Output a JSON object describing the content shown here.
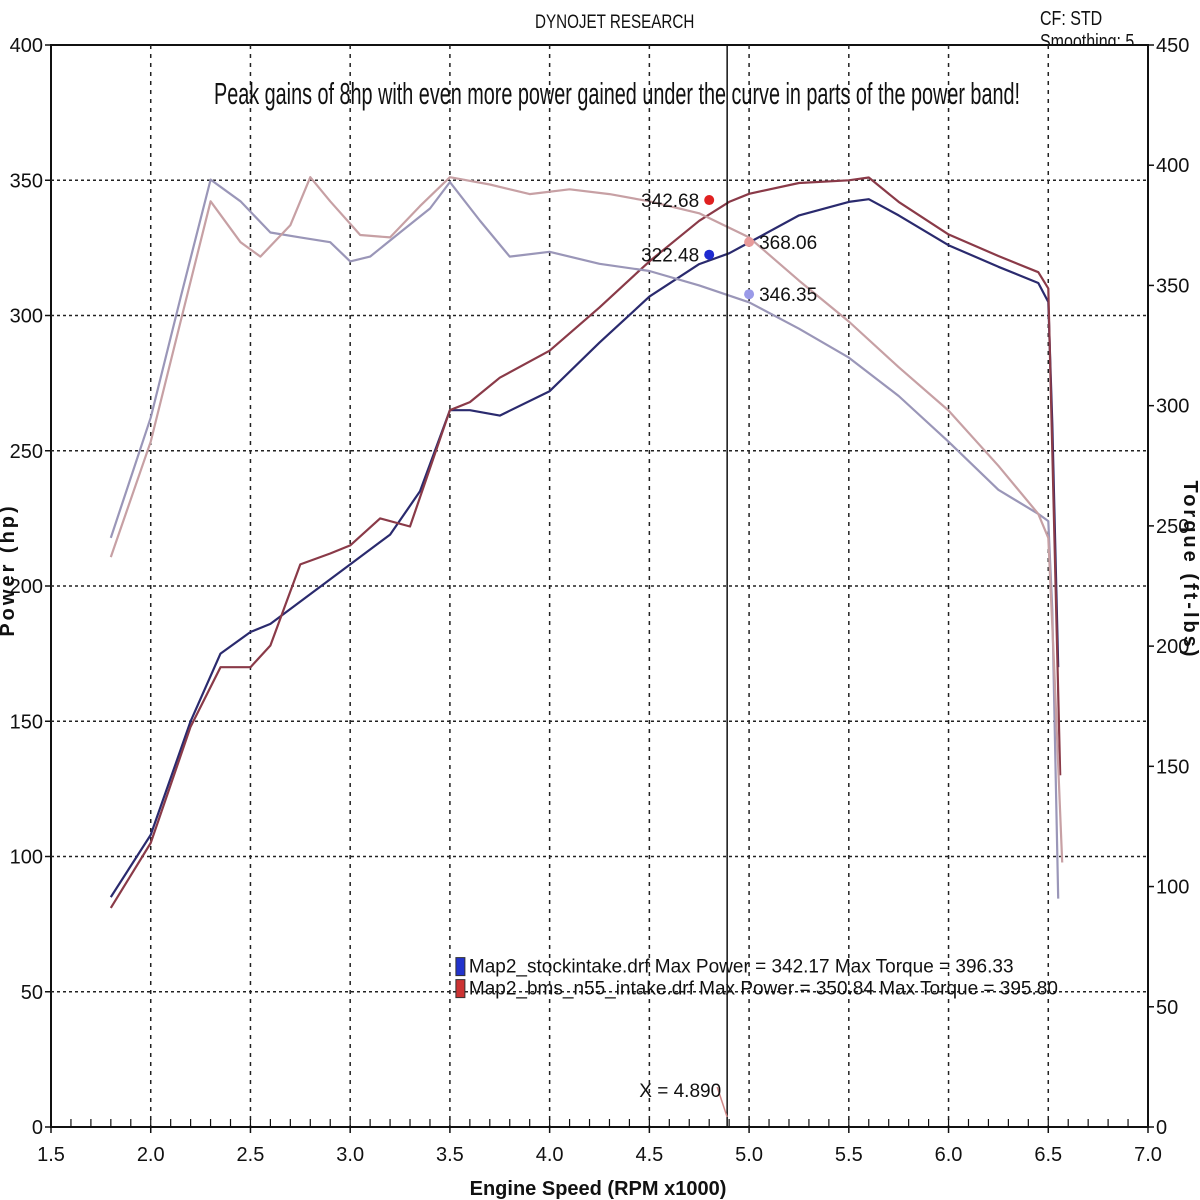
{
  "header": {
    "title": "DYNOJET RESEARCH",
    "cf_smoothing": "CF: STD  Smoothing: 5"
  },
  "chart_data": {
    "type": "line",
    "title": "Peak gains of 8hp with even more power gained under the curve in parts of the power band!",
    "xlabel": "Engine Speed (RPM x1000)",
    "ylabel": "Power (hp)",
    "y2label": "Torque (ft-lbs)",
    "xlim": [
      1.5,
      7.0
    ],
    "ylim": [
      0,
      400
    ],
    "y2lim": [
      0,
      450
    ],
    "x_ticks": [
      "1.5",
      "2.0",
      "2.5",
      "3.0",
      "3.5",
      "4.0",
      "4.5",
      "5.0",
      "5.5",
      "6.0",
      "6.5",
      "7.0"
    ],
    "y_ticks": [
      "0",
      "50",
      "100",
      "150",
      "200",
      "250",
      "300",
      "350",
      "400"
    ],
    "y2_ticks": [
      "0",
      "50",
      "100",
      "150",
      "200",
      "250",
      "300",
      "350",
      "400",
      "450"
    ],
    "grid": true,
    "cursor": {
      "x": 4.89,
      "label": "X = 4.890"
    },
    "series": [
      {
        "name": "Map2_stockintake.drf",
        "kind": "power",
        "axis": "left",
        "color": "#2a2a6e",
        "x": [
          1.8,
          2.0,
          2.2,
          2.35,
          2.5,
          2.6,
          2.8,
          3.0,
          3.2,
          3.35,
          3.5,
          3.6,
          3.75,
          4.0,
          4.25,
          4.5,
          4.75,
          4.9,
          5.0,
          5.25,
          5.5,
          5.6,
          5.75,
          6.0,
          6.25,
          6.45,
          6.5,
          6.52,
          6.55
        ],
        "y": [
          85,
          108,
          150,
          175,
          183,
          186,
          197,
          208,
          219,
          235,
          265,
          265,
          263,
          272,
          290,
          307,
          319,
          323,
          327,
          337,
          342,
          343,
          337,
          326,
          318,
          312,
          305,
          260,
          170
        ]
      },
      {
        "name": "Map2_bms_n55_intake.drf",
        "kind": "power",
        "axis": "left",
        "color": "#8a3a48",
        "x": [
          1.8,
          2.0,
          2.2,
          2.35,
          2.5,
          2.6,
          2.75,
          2.9,
          3.0,
          3.15,
          3.3,
          3.5,
          3.6,
          3.75,
          4.0,
          4.25,
          4.5,
          4.75,
          4.9,
          5.0,
          5.25,
          5.5,
          5.6,
          5.75,
          6.0,
          6.25,
          6.45,
          6.5,
          6.52,
          6.56
        ],
        "y": [
          81,
          105,
          148,
          170,
          170,
          178,
          208,
          212,
          215,
          225,
          222,
          265,
          268,
          277,
          287,
          303,
          320,
          335,
          342,
          345,
          349,
          350,
          351,
          342,
          330,
          322,
          316,
          310,
          250,
          130
        ]
      },
      {
        "name": "Map2_stockintake.drf",
        "kind": "torque",
        "axis": "right",
        "color": "#9a96b8",
        "x": [
          1.8,
          2.0,
          2.15,
          2.3,
          2.45,
          2.6,
          2.75,
          2.9,
          3.0,
          3.1,
          3.25,
          3.4,
          3.5,
          3.65,
          3.8,
          4.0,
          4.25,
          4.5,
          4.75,
          5.0,
          5.25,
          5.5,
          5.75,
          6.0,
          6.25,
          6.45,
          6.5,
          6.52,
          6.55
        ],
        "y": [
          245,
          295,
          345,
          394,
          385,
          372,
          370,
          368,
          360,
          362,
          372,
          382,
          393,
          377,
          362,
          364,
          359,
          356,
          350,
          343,
          332,
          320,
          304,
          285,
          265,
          255,
          252,
          215,
          95
        ]
      },
      {
        "name": "Map2_bms_n55_intake.drf",
        "kind": "torque",
        "axis": "right",
        "color": "#c7a0a4",
        "x": [
          1.8,
          2.0,
          2.15,
          2.3,
          2.45,
          2.55,
          2.7,
          2.8,
          2.9,
          3.05,
          3.2,
          3.35,
          3.5,
          3.7,
          3.9,
          4.1,
          4.3,
          4.5,
          4.75,
          5.0,
          5.25,
          5.5,
          5.75,
          6.0,
          6.25,
          6.45,
          6.5,
          6.53,
          6.57
        ],
        "y": [
          237,
          285,
          335,
          385,
          368,
          362,
          375,
          395,
          385,
          371,
          370,
          383,
          395,
          392,
          388,
          390,
          388,
          385,
          380,
          370,
          352,
          335,
          316,
          298,
          275,
          255,
          245,
          190,
          110
        ]
      }
    ],
    "point_labels": [
      {
        "text": "342.68",
        "x": 4.8,
        "y": 342.68,
        "axis": "left",
        "color": "#e02020"
      },
      {
        "text": "322.48",
        "x": 4.8,
        "y": 322.48,
        "axis": "left",
        "color": "#1e2ad0"
      },
      {
        "text": "368.06",
        "x": 5.0,
        "y": 368.06,
        "axis": "right",
        "color": "#e89a9a"
      },
      {
        "text": "346.35",
        "x": 5.0,
        "y": 346.35,
        "axis": "right",
        "color": "#9a9ae8"
      }
    ],
    "legend": {
      "placement": "lower-center",
      "entries": [
        {
          "text": "Map2_stockintake.drf Max Power = 342.17     Max Torque = 396.33",
          "color": "#2233cc"
        },
        {
          "text": "Map2_bms_n55_intake.drf Max Power = 350.84     Max Torque = 395.80",
          "color": "#cc3333"
        }
      ]
    }
  }
}
